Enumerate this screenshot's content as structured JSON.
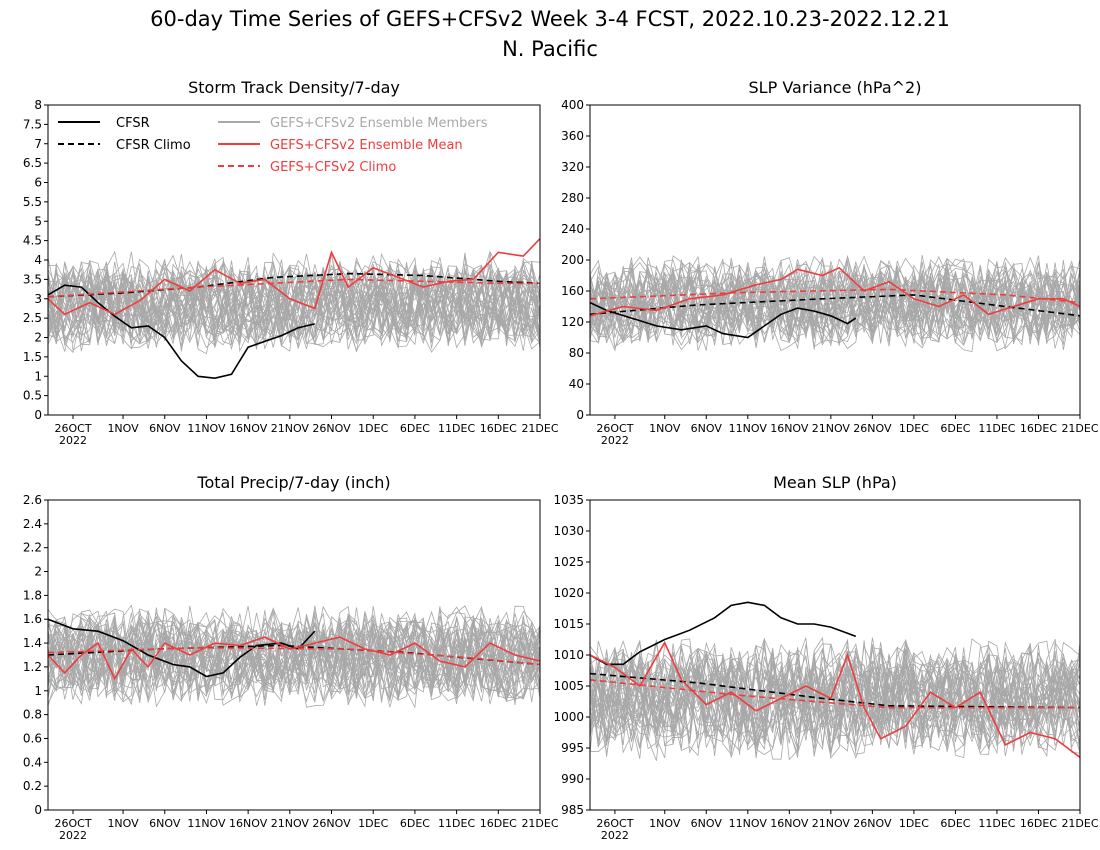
{
  "figure": {
    "title_line1": "60-day Time Series of GEFS+CFSv2 Week 3-4 FCST, 2022.10.23-2022.12.21",
    "title_line2": "N. Pacific",
    "year_label": "2022"
  },
  "legend": {
    "entries": [
      {
        "label": "CFSR",
        "color": "#000000",
        "dash": "solid"
      },
      {
        "label": "CFSR Climo",
        "color": "#000000",
        "dash": "dashed"
      },
      {
        "label": "GEFS+CFSv2 Ensemble Members",
        "color": "#a8a8a8",
        "dash": "solid"
      },
      {
        "label": "GEFS+CFSv2 Ensemble Mean",
        "color": "#f03c3c",
        "dash": "solid"
      },
      {
        "label": "GEFS+CFSv2 Climo",
        "color": "#f03c3c",
        "dash": "dashed"
      }
    ]
  },
  "colors": {
    "cfsr": "#000000",
    "members": "#a8a8a8",
    "mean": "#f03c3c",
    "climo": "#f03c3c"
  },
  "chart_data": [
    {
      "type": "line",
      "title": "Storm Track Density/7-day",
      "xlabel": "",
      "ylabel": "",
      "x_start": "2022-10-23",
      "x_end": "2022-12-21",
      "xticks": [
        "26OCT",
        "1NOV",
        "6NOV",
        "11NOV",
        "16NOV",
        "21NOV",
        "26NOV",
        "1DEC",
        "6DEC",
        "11DEC",
        "16DEC",
        "21DEC"
      ],
      "yticks": [
        "0",
        "0.5",
        "1",
        "1.5",
        "2",
        "2.5",
        "3",
        "3.5",
        "4",
        "4.5",
        "5",
        "5.5",
        "6",
        "6.5",
        "7",
        "7.5",
        "8"
      ],
      "ylim": [
        0,
        8
      ],
      "members": {
        "count": 40,
        "center": 2.9,
        "spread": 0.85,
        "note": "gray spaghetti of 40 ensemble members"
      },
      "series": [
        {
          "name": "CFSR",
          "style": "solid",
          "color": "#000000",
          "x": [
            "2022-10-23",
            "2022-10-25",
            "2022-10-27",
            "2022-10-29",
            "2022-10-31",
            "2022-11-02",
            "2022-11-04",
            "2022-11-06",
            "2022-11-08",
            "2022-11-10",
            "2022-11-12",
            "2022-11-14",
            "2022-11-16",
            "2022-11-18",
            "2022-11-20",
            "2022-11-22",
            "2022-11-24"
          ],
          "values": [
            3.1,
            3.35,
            3.3,
            2.9,
            2.55,
            2.25,
            2.3,
            2.0,
            1.4,
            1.0,
            0.95,
            1.05,
            1.75,
            1.9,
            2.05,
            2.25,
            2.35
          ]
        },
        {
          "name": "CFSR Climo",
          "style": "dashed",
          "color": "#000000",
          "x": [
            "2022-10-23",
            "2022-11-01",
            "2022-11-10",
            "2022-11-19",
            "2022-11-28",
            "2022-12-07",
            "2022-12-16",
            "2022-12-21"
          ],
          "values": [
            3.05,
            3.15,
            3.3,
            3.55,
            3.65,
            3.6,
            3.45,
            3.4
          ]
        },
        {
          "name": "GEFS+CFSv2 Ensemble Mean",
          "style": "solid",
          "color": "#f03c3c",
          "x": [
            "2022-10-23",
            "2022-10-25",
            "2022-10-28",
            "2022-10-31",
            "2022-11-03",
            "2022-11-06",
            "2022-11-09",
            "2022-11-12",
            "2022-11-15",
            "2022-11-18",
            "2022-11-21",
            "2022-11-24",
            "2022-11-26",
            "2022-11-28",
            "2022-12-01",
            "2022-12-04",
            "2022-12-07",
            "2022-12-10",
            "2022-12-13",
            "2022-12-16",
            "2022-12-19",
            "2022-12-21"
          ],
          "values": [
            3.0,
            2.6,
            2.9,
            2.6,
            2.95,
            3.5,
            3.2,
            3.75,
            3.4,
            3.5,
            3.0,
            2.75,
            4.2,
            3.3,
            3.8,
            3.55,
            3.3,
            3.45,
            3.5,
            4.2,
            4.1,
            4.55
          ]
        },
        {
          "name": "GEFS+CFSv2 Climo",
          "style": "dashed",
          "color": "#f03c3c",
          "x": [
            "2022-10-23",
            "2022-11-10",
            "2022-11-28",
            "2022-12-16",
            "2022-12-21"
          ],
          "values": [
            3.05,
            3.3,
            3.5,
            3.4,
            3.4
          ]
        }
      ]
    },
    {
      "type": "line",
      "title": "SLP Variance (hPa^2)",
      "xlabel": "",
      "ylabel": "",
      "x_start": "2022-10-23",
      "x_end": "2022-12-21",
      "xticks": [
        "26OCT",
        "1NOV",
        "6NOV",
        "11NOV",
        "16NOV",
        "21NOV",
        "26NOV",
        "1DEC",
        "6DEC",
        "11DEC",
        "16DEC",
        "21DEC"
      ],
      "yticks": [
        "0",
        "40",
        "80",
        "120",
        "160",
        "200",
        "240",
        "280",
        "320",
        "360",
        "400"
      ],
      "ylim": [
        0,
        400
      ],
      "members": {
        "count": 40,
        "center": 145,
        "spread": 40,
        "note": "gray spaghetti of 40 ensemble members"
      },
      "series": [
        {
          "name": "CFSR",
          "style": "solid",
          "color": "#000000",
          "x": [
            "2022-10-23",
            "2022-10-25",
            "2022-10-28",
            "2022-10-31",
            "2022-11-03",
            "2022-11-06",
            "2022-11-08",
            "2022-11-11",
            "2022-11-13",
            "2022-11-15",
            "2022-11-17",
            "2022-11-19",
            "2022-11-21",
            "2022-11-23",
            "2022-11-24"
          ],
          "values": [
            145,
            135,
            125,
            115,
            110,
            115,
            105,
            100,
            115,
            130,
            138,
            134,
            128,
            118,
            125
          ]
        },
        {
          "name": "CFSR Climo",
          "style": "dashed",
          "color": "#000000",
          "x": [
            "2022-10-23",
            "2022-11-05",
            "2022-11-20",
            "2022-12-01",
            "2022-12-12",
            "2022-12-21"
          ],
          "values": [
            130,
            142,
            150,
            155,
            140,
            128
          ]
        },
        {
          "name": "GEFS+CFSv2 Ensemble Mean",
          "style": "solid",
          "color": "#f03c3c",
          "x": [
            "2022-10-23",
            "2022-10-27",
            "2022-10-31",
            "2022-11-04",
            "2022-11-08",
            "2022-11-12",
            "2022-11-15",
            "2022-11-17",
            "2022-11-20",
            "2022-11-22",
            "2022-11-25",
            "2022-11-28",
            "2022-12-01",
            "2022-12-04",
            "2022-12-07",
            "2022-12-10",
            "2022-12-13",
            "2022-12-16",
            "2022-12-19",
            "2022-12-21"
          ],
          "values": [
            128,
            140,
            135,
            150,
            155,
            168,
            175,
            188,
            180,
            190,
            160,
            172,
            150,
            140,
            155,
            130,
            140,
            150,
            150,
            140
          ]
        },
        {
          "name": "GEFS+CFSv2 Climo",
          "style": "dashed",
          "color": "#f03c3c",
          "x": [
            "2022-10-23",
            "2022-11-10",
            "2022-11-28",
            "2022-12-12",
            "2022-12-21"
          ],
          "values": [
            150,
            158,
            162,
            155,
            145
          ]
        }
      ]
    },
    {
      "type": "line",
      "title": "Total Precip/7-day (inch)",
      "xlabel": "",
      "ylabel": "",
      "x_start": "2022-10-23",
      "x_end": "2022-12-21",
      "xticks": [
        "26OCT",
        "1NOV",
        "6NOV",
        "11NOV",
        "16NOV",
        "21NOV",
        "26NOV",
        "1DEC",
        "6DEC",
        "11DEC",
        "16DEC",
        "21DEC"
      ],
      "yticks": [
        "0",
        "0.2",
        "0.4",
        "0.6",
        "0.8",
        "1",
        "1.2",
        "1.4",
        "1.6",
        "1.8",
        "2",
        "2.2",
        "2.4",
        "2.6"
      ],
      "ylim": [
        0,
        2.6
      ],
      "members": {
        "count": 40,
        "center": 1.3,
        "spread": 0.28,
        "note": "gray spaghetti of 40 ensemble members"
      },
      "series": [
        {
          "name": "CFSR",
          "style": "solid",
          "color": "#000000",
          "x": [
            "2022-10-23",
            "2022-10-26",
            "2022-10-29",
            "2022-11-01",
            "2022-11-04",
            "2022-11-07",
            "2022-11-09",
            "2022-11-11",
            "2022-11-13",
            "2022-11-15",
            "2022-11-17",
            "2022-11-20",
            "2022-11-22",
            "2022-11-24"
          ],
          "values": [
            1.6,
            1.52,
            1.5,
            1.42,
            1.3,
            1.22,
            1.2,
            1.12,
            1.15,
            1.28,
            1.38,
            1.4,
            1.35,
            1.5
          ]
        },
        {
          "name": "CFSR Climo",
          "style": "dashed",
          "color": "#000000",
          "x": [
            "2022-10-23",
            "2022-11-05",
            "2022-11-20",
            "2022-12-05",
            "2022-12-21"
          ],
          "values": [
            1.3,
            1.35,
            1.38,
            1.32,
            1.22
          ]
        },
        {
          "name": "GEFS+CFSv2 Ensemble Mean",
          "style": "solid",
          "color": "#f03c3c",
          "x": [
            "2022-10-23",
            "2022-10-25",
            "2022-10-27",
            "2022-10-29",
            "2022-10-31",
            "2022-11-02",
            "2022-11-04",
            "2022-11-06",
            "2022-11-09",
            "2022-11-12",
            "2022-11-15",
            "2022-11-18",
            "2022-11-21",
            "2022-11-24",
            "2022-11-27",
            "2022-11-30",
            "2022-12-03",
            "2022-12-06",
            "2022-12-09",
            "2022-12-12",
            "2022-12-15",
            "2022-12-18",
            "2022-12-21"
          ],
          "values": [
            1.3,
            1.15,
            1.3,
            1.4,
            1.1,
            1.35,
            1.2,
            1.4,
            1.3,
            1.4,
            1.38,
            1.45,
            1.35,
            1.4,
            1.45,
            1.35,
            1.3,
            1.4,
            1.25,
            1.2,
            1.4,
            1.3,
            1.25
          ]
        },
        {
          "name": "GEFS+CFSv2 Climo",
          "style": "dashed",
          "color": "#f03c3c",
          "x": [
            "2022-10-23",
            "2022-11-10",
            "2022-11-28",
            "2022-12-12",
            "2022-12-21"
          ],
          "values": [
            1.32,
            1.36,
            1.35,
            1.28,
            1.22
          ]
        }
      ]
    },
    {
      "type": "line",
      "title": "Mean SLP (hPa)",
      "xlabel": "",
      "ylabel": "",
      "x_start": "2022-10-23",
      "x_end": "2022-12-21",
      "xticks": [
        "26OCT",
        "1NOV",
        "6NOV",
        "11NOV",
        "16NOV",
        "21NOV",
        "26NOV",
        "1DEC",
        "6DEC",
        "11DEC",
        "16DEC",
        "21DEC"
      ],
      "yticks": [
        "985",
        "990",
        "995",
        "1000",
        "1005",
        "1010",
        "1015",
        "1020",
        "1025",
        "1030",
        "1035"
      ],
      "ylim": [
        985,
        1035
      ],
      "members": {
        "count": 40,
        "center": 1003,
        "spread": 6.5,
        "note": "gray spaghetti of 40 ensemble members"
      },
      "series": [
        {
          "name": "CFSR",
          "style": "solid",
          "color": "#000000",
          "x": [
            "2022-10-23",
            "2022-10-25",
            "2022-10-27",
            "2022-10-29",
            "2022-11-01",
            "2022-11-04",
            "2022-11-07",
            "2022-11-09",
            "2022-11-11",
            "2022-11-13",
            "2022-11-15",
            "2022-11-17",
            "2022-11-19",
            "2022-11-21",
            "2022-11-23",
            "2022-11-24"
          ],
          "values": [
            1010,
            1008.5,
            1008.5,
            1010.5,
            1012.5,
            1014,
            1016,
            1018,
            1018.5,
            1018,
            1016,
            1015,
            1015,
            1014.5,
            1013.5,
            1013
          ]
        },
        {
          "name": "CFSR Climo",
          "style": "dashed",
          "color": "#000000",
          "x": [
            "2022-10-23",
            "2022-11-05",
            "2022-11-20",
            "2022-11-28",
            "2022-12-21"
          ],
          "values": [
            1007,
            1005.5,
            1003,
            1001.8,
            1001.5
          ]
        },
        {
          "name": "GEFS+CFSv2 Ensemble Mean",
          "style": "solid",
          "color": "#f03c3c",
          "x": [
            "2022-10-23",
            "2022-10-26",
            "2022-10-29",
            "2022-11-01",
            "2022-11-03",
            "2022-11-06",
            "2022-11-09",
            "2022-11-12",
            "2022-11-15",
            "2022-11-18",
            "2022-11-21",
            "2022-11-23",
            "2022-11-25",
            "2022-11-27",
            "2022-11-30",
            "2022-12-03",
            "2022-12-06",
            "2022-12-09",
            "2022-12-12",
            "2022-12-15",
            "2022-12-18",
            "2022-12-21"
          ],
          "values": [
            1010,
            1008,
            1005,
            1012,
            1006,
            1002,
            1004,
            1001,
            1003,
            1005,
            1003,
            1010,
            1001.5,
            996.5,
            998.5,
            1004,
            1001.5,
            1004,
            995.5,
            997.5,
            996.5,
            993.5
          ]
        },
        {
          "name": "GEFS+CFSv2 Climo",
          "style": "dashed",
          "color": "#f03c3c",
          "x": [
            "2022-10-23",
            "2022-11-10",
            "2022-11-28",
            "2022-12-21"
          ],
          "values": [
            1006,
            1003.5,
            1001.5,
            1001.5
          ]
        }
      ]
    }
  ]
}
